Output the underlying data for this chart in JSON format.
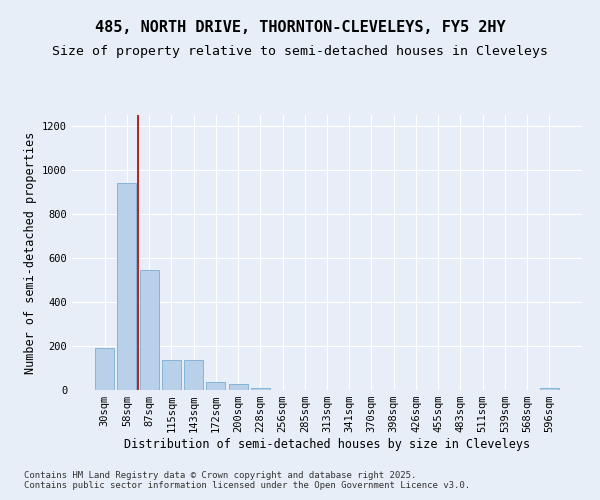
{
  "title1": "485, NORTH DRIVE, THORNTON-CLEVELEYS, FY5 2HY",
  "title2": "Size of property relative to semi-detached houses in Cleveleys",
  "xlabel": "Distribution of semi-detached houses by size in Cleveleys",
  "ylabel": "Number of semi-detached properties",
  "categories": [
    "30sqm",
    "58sqm",
    "87sqm",
    "115sqm",
    "143sqm",
    "172sqm",
    "200sqm",
    "228sqm",
    "256sqm",
    "285sqm",
    "313sqm",
    "341sqm",
    "370sqm",
    "398sqm",
    "426sqm",
    "455sqm",
    "483sqm",
    "511sqm",
    "539sqm",
    "568sqm",
    "596sqm"
  ],
  "values": [
    190,
    940,
    545,
    135,
    135,
    38,
    28,
    10,
    0,
    0,
    0,
    0,
    0,
    0,
    0,
    0,
    0,
    0,
    0,
    0,
    10
  ],
  "bar_color": "#b8d0ea",
  "bar_edge_color": "#7aadd4",
  "vline_x": 1.5,
  "vline_color": "#aa0000",
  "annotation_box_color": "#ffffff",
  "annotation_box_edge_color": "#cc0000",
  "ylim": [
    0,
    1250
  ],
  "yticks": [
    0,
    200,
    400,
    600,
    800,
    1000,
    1200
  ],
  "background_color": "#e8eef8",
  "grid_color": "#ffffff",
  "footer_text": "Contains HM Land Registry data © Crown copyright and database right 2025.\nContains public sector information licensed under the Open Government Licence v3.0.",
  "title_fontsize": 11,
  "subtitle_fontsize": 9.5,
  "axis_label_fontsize": 8.5,
  "tick_fontsize": 7.5,
  "annotation_fontsize": 8,
  "footer_fontsize": 6.5
}
